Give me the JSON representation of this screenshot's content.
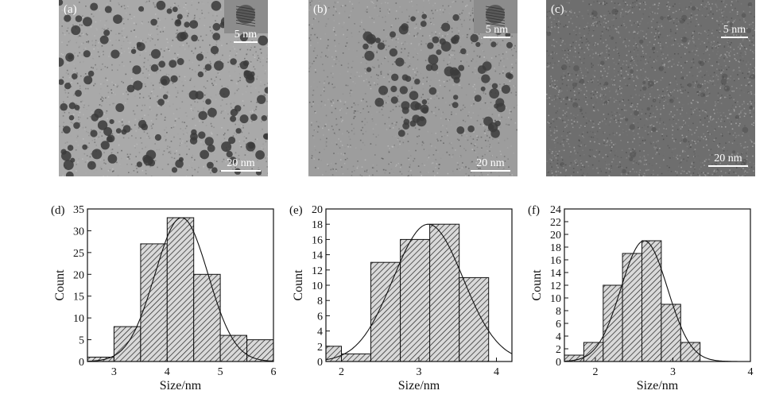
{
  "tem_panels": [
    {
      "label": "(a)",
      "scale_large": "20 nm",
      "scale_small": "5 nm",
      "shade": "#a9a9a9",
      "particle_color": "#3a3a3a",
      "has_inset": true
    },
    {
      "label": "(b)",
      "scale_large": "20 nm",
      "scale_small": "5 nm",
      "shade": "#9d9d9d",
      "particle_color": "#3c3c3c",
      "has_inset": true
    },
    {
      "label": "(c)",
      "scale_large": "20 nm",
      "scale_small": "5 nm",
      "shade": "#6e6e6e",
      "particle_color": "#4a4a4a",
      "has_inset": false
    }
  ],
  "chart_data": [
    {
      "panel": "(d)",
      "type": "bar",
      "xlabel": "Size/nm",
      "ylabel": "Count",
      "xlim": [
        2.5,
        6
      ],
      "ylim": [
        0,
        35
      ],
      "xticks": [
        3,
        4,
        5,
        6
      ],
      "yticks": [
        0,
        5,
        10,
        15,
        20,
        25,
        30,
        35
      ],
      "bins": [
        [
          2.5,
          3.0
        ],
        [
          3.0,
          3.5
        ],
        [
          3.5,
          4.0
        ],
        [
          4.0,
          4.5
        ],
        [
          4.5,
          5.0
        ],
        [
          5.0,
          5.5
        ],
        [
          5.5,
          6.0
        ]
      ],
      "values": [
        1,
        8,
        27,
        33,
        20,
        6,
        5
      ],
      "fit": {
        "mean": 4.27,
        "sigma": 0.5,
        "peak": 33
      }
    },
    {
      "panel": "(e)",
      "type": "bar",
      "xlabel": "Size/nm",
      "ylabel": "Count",
      "xlim": [
        1.8,
        4.2
      ],
      "ylim": [
        0,
        20
      ],
      "xticks": [
        2,
        3,
        4
      ],
      "yticks": [
        0,
        2,
        4,
        6,
        8,
        10,
        12,
        14,
        16,
        18,
        20
      ],
      "bins": [
        [
          1.8,
          2.0
        ],
        [
          2.0,
          2.38
        ],
        [
          2.38,
          2.76
        ],
        [
          2.76,
          3.14
        ],
        [
          3.14,
          3.52
        ],
        [
          3.52,
          3.9
        ]
      ],
      "values": [
        2,
        1,
        13,
        16,
        18,
        11
      ],
      "fit": {
        "mean": 3.12,
        "sigma": 0.45,
        "peak": 18
      }
    },
    {
      "panel": "(f)",
      "type": "bar",
      "xlabel": "Size/nm",
      "ylabel": "Count",
      "xlim": [
        1.6,
        4.0
      ],
      "ylim": [
        0,
        24
      ],
      "xticks": [
        2,
        3,
        4
      ],
      "yticks": [
        0,
        2,
        4,
        6,
        8,
        10,
        12,
        14,
        16,
        18,
        20,
        22,
        24
      ],
      "bins": [
        [
          1.6,
          1.85
        ],
        [
          1.85,
          2.1
        ],
        [
          2.1,
          2.35
        ],
        [
          2.35,
          2.6
        ],
        [
          2.6,
          2.85
        ],
        [
          2.85,
          3.1
        ],
        [
          3.1,
          3.35
        ]
      ],
      "values": [
        1,
        3,
        12,
        17,
        19,
        9,
        3
      ],
      "fit": {
        "mean": 2.63,
        "sigma": 0.3,
        "peak": 19
      }
    }
  ]
}
